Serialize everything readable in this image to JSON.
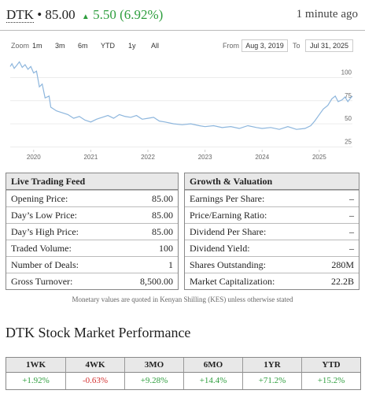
{
  "header": {
    "ticker": "DTK",
    "price": "85.00",
    "change": "5.50 (6.92%)",
    "updated": "1 minute ago"
  },
  "range_selector": {
    "zoom_label": "Zoom",
    "buttons": [
      "1m",
      "3m",
      "6m",
      "YTD",
      "1y",
      "All"
    ],
    "from_label": "From",
    "from": "Aug 3, 2019",
    "to_label": "To",
    "to": "Jul 31, 2025"
  },
  "chart_data": {
    "type": "line",
    "x": [
      2019.59,
      2019.62,
      2019.66,
      2019.7,
      2019.75,
      2019.8,
      2019.85,
      2019.9,
      2019.95,
      2020.0,
      2020.05,
      2020.1,
      2020.15,
      2020.2,
      2020.27,
      2020.3,
      2020.4,
      2020.5,
      2020.6,
      2020.7,
      2020.8,
      2020.9,
      2021.0,
      2021.1,
      2021.2,
      2021.3,
      2021.4,
      2021.5,
      2021.6,
      2021.7,
      2021.8,
      2021.9,
      2022.0,
      2022.1,
      2022.2,
      2022.3,
      2022.45,
      2022.6,
      2022.75,
      2022.9,
      2023.0,
      2023.15,
      2023.3,
      2023.45,
      2023.6,
      2023.75,
      2023.9,
      2024.0,
      2024.15,
      2024.3,
      2024.45,
      2024.6,
      2024.75,
      2024.85,
      2024.92,
      2025.0,
      2025.07,
      2025.15,
      2025.22,
      2025.28,
      2025.33,
      2025.4,
      2025.45,
      2025.5,
      2025.55,
      2025.58
    ],
    "values": [
      112,
      115,
      110,
      113,
      117,
      111,
      114,
      109,
      112,
      105,
      107,
      90,
      93,
      78,
      80,
      68,
      64,
      62,
      60,
      56,
      58,
      54,
      52,
      55,
      57,
      59,
      56,
      60,
      58,
      57,
      59,
      55,
      56,
      57,
      53,
      52,
      50,
      49,
      50,
      48,
      47,
      48,
      46,
      47,
      45,
      48,
      46,
      45,
      46,
      44,
      47,
      44,
      45,
      48,
      53,
      60,
      66,
      70,
      77,
      80,
      74,
      76,
      79,
      74,
      78,
      80
    ],
    "color": "#8db6dd",
    "xlim": [
      2019.59,
      2025.58
    ],
    "xticks": [
      2020,
      2021,
      2022,
      2023,
      2024,
      2025
    ],
    "ylim": [
      22,
      120
    ],
    "yticks": [
      25,
      50,
      75,
      100
    ],
    "grid": true
  },
  "trading_table": {
    "title": "Live Trading Feed",
    "rows": [
      [
        "Opening Price:",
        "85.00"
      ],
      [
        "Day’s Low Price:",
        "85.00"
      ],
      [
        "Day’s High Price:",
        "85.00"
      ],
      [
        "Traded Volume:",
        "100"
      ],
      [
        "Number of Deals:",
        "1"
      ],
      [
        "Gross Turnover:",
        "8,500.00"
      ]
    ]
  },
  "valuation_table": {
    "title": "Growth & Valuation",
    "rows": [
      [
        "Earnings Per Share:",
        "–"
      ],
      [
        "Price/Earning Ratio:",
        "–"
      ],
      [
        "Dividend Per Share:",
        "–"
      ],
      [
        "Dividend Yield:",
        "–"
      ],
      [
        "Shares Outstanding:",
        "280M"
      ],
      [
        "Market Capitalization:",
        "22.2B"
      ]
    ]
  },
  "footnote": "Monetary values are quoted in Kenyan Shilling (KES) unless otherwise stated",
  "performance": {
    "title": "DTK Stock Market Performance",
    "headers": [
      "1WK",
      "4WK",
      "3MO",
      "6MO",
      "1YR",
      "YTD"
    ],
    "values": [
      "+1.92%",
      "-0.63%",
      "+9.28%",
      "+14.4%",
      "+71.2%",
      "+15.2%"
    ],
    "up_color": "#2e9e3e",
    "down_color": "#d32f2f"
  }
}
